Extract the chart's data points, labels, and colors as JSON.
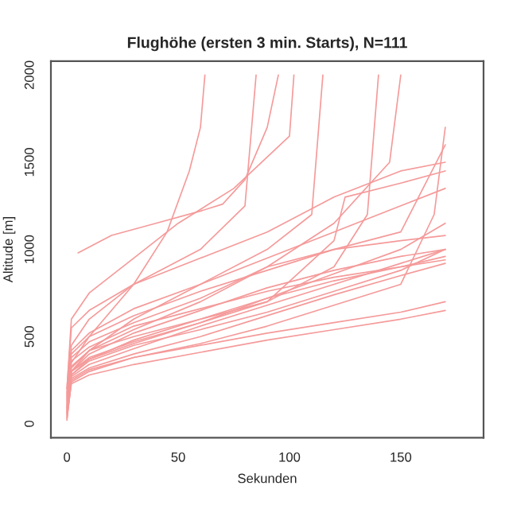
{
  "chart_data": {
    "type": "line",
    "title": "Flughöhe (ersten 3 min. Starts), N=111",
    "xlabel": "Sekunden",
    "ylabel": "Altitude [m]",
    "xlim": [
      -7.2,
      187.2
    ],
    "ylim": [
      -80,
      2080
    ],
    "xticks": [
      0,
      50,
      100,
      150
    ],
    "yticks": [
      0,
      500,
      1000,
      1500,
      2000
    ],
    "grid": false,
    "legend": false,
    "line_style": "solid",
    "marker": "none",
    "series": [
      {
        "color": "#f59a9a",
        "x": [
          0,
          2,
          10,
          30,
          60,
          90,
          120,
          150,
          170
        ],
        "values": [
          20,
          250,
          310,
          380,
          450,
          520,
          580,
          640,
          700
        ]
      },
      {
        "color": "#f59a9a",
        "x": [
          0,
          2,
          10,
          30,
          60,
          90,
          120,
          150,
          170
        ],
        "values": [
          100,
          300,
          400,
          520,
          650,
          780,
          880,
          960,
          1000
        ]
      },
      {
        "color": "#f59a9a",
        "x": [
          0,
          2,
          10,
          30,
          60,
          90,
          120,
          125,
          150,
          170
        ],
        "values": [
          50,
          280,
          370,
          480,
          600,
          700,
          1050,
          1300,
          1380,
          1450
        ]
      },
      {
        "color": "#f59a9a",
        "x": [
          0,
          2,
          10,
          30,
          60,
          90,
          120,
          150,
          170
        ],
        "values": [
          200,
          550,
          650,
          800,
          950,
          1100,
          1300,
          1450,
          1500
        ]
      },
      {
        "color": "#f59a9a",
        "x": [
          5,
          20,
          40,
          60,
          70,
          80,
          90,
          95
        ],
        "values": [
          980,
          1080,
          1150,
          1220,
          1260,
          1400,
          1700,
          2000
        ]
      },
      {
        "color": "#f59a9a",
        "x": [
          0,
          2,
          10,
          30,
          45,
          55,
          60,
          62
        ],
        "values": [
          150,
          350,
          500,
          800,
          1100,
          1450,
          1700,
          2000
        ]
      },
      {
        "color": "#f59a9a",
        "x": [
          0,
          2,
          10,
          30,
          60,
          90,
          110,
          115
        ],
        "values": [
          80,
          300,
          420,
          600,
          800,
          1000,
          1200,
          2000
        ]
      },
      {
        "color": "#f59a9a",
        "x": [
          0,
          2,
          10,
          30,
          60,
          90,
          120,
          145,
          150
        ],
        "values": [
          120,
          320,
          420,
          540,
          700,
          900,
          1150,
          1500,
          2000
        ]
      },
      {
        "color": "#f59a9a",
        "x": [
          0,
          2,
          10,
          30,
          60,
          90,
          120,
          150,
          170
        ],
        "values": [
          60,
          260,
          320,
          400,
          500,
          620,
          740,
          850,
          920
        ]
      },
      {
        "color": "#f59a9a",
        "x": [
          0,
          2,
          10,
          30,
          60,
          90,
          120,
          150,
          170
        ],
        "values": [
          90,
          330,
          420,
          500,
          600,
          720,
          820,
          900,
          960
        ]
      },
      {
        "color": "#f59a9a",
        "x": [
          0,
          2,
          10,
          30,
          60,
          90,
          120,
          150,
          170
        ],
        "values": [
          40,
          230,
          280,
          340,
          410,
          480,
          540,
          600,
          650
        ]
      },
      {
        "color": "#f59a9a",
        "x": [
          0,
          2,
          10,
          30,
          60,
          90,
          120,
          150,
          160,
          170
        ],
        "values": [
          160,
          400,
          500,
          620,
          760,
          880,
          1000,
          1100,
          1350,
          1600
        ]
      },
      {
        "color": "#f59a9a",
        "x": [
          0,
          2,
          10,
          30,
          60,
          80,
          85
        ],
        "values": [
          180,
          450,
          600,
          800,
          1000,
          1250,
          2000
        ]
      },
      {
        "color": "#f59a9a",
        "x": [
          0,
          2,
          10,
          30,
          60,
          90,
          120,
          135,
          140
        ],
        "values": [
          70,
          300,
          380,
          470,
          580,
          700,
          900,
          1200,
          2000
        ]
      },
      {
        "color": "#f59a9a",
        "x": [
          0,
          2,
          10,
          30,
          60,
          90,
          120,
          150,
          170
        ],
        "values": [
          130,
          380,
          470,
          580,
          720,
          900,
          1000,
          1050,
          1080
        ]
      },
      {
        "color": "#f59a9a",
        "x": [
          0,
          2,
          10,
          30,
          60,
          90,
          120,
          150,
          170
        ],
        "values": [
          110,
          270,
          340,
          430,
          560,
          680,
          800,
          920,
          1000
        ]
      },
      {
        "color": "#f59a9a",
        "x": [
          0,
          2,
          10,
          30,
          50,
          75,
          100,
          102
        ],
        "values": [
          200,
          600,
          750,
          950,
          1150,
          1350,
          1650,
          2000
        ]
      },
      {
        "color": "#f59a9a",
        "x": [
          0,
          2,
          10,
          30,
          60,
          90,
          120,
          150,
          165,
          170
        ],
        "values": [
          30,
          240,
          300,
          380,
          460,
          560,
          680,
          800,
          1200,
          1700
        ]
      },
      {
        "color": "#f59a9a",
        "x": [
          0,
          2,
          10,
          30,
          60,
          90,
          120,
          150,
          170
        ],
        "values": [
          170,
          420,
          520,
          660,
          800,
          950,
          1100,
          1250,
          1350
        ]
      },
      {
        "color": "#f59a9a",
        "x": [
          0,
          2,
          10,
          30,
          60,
          90,
          120,
          150,
          170
        ],
        "values": [
          60,
          280,
          360,
          450,
          540,
          640,
          760,
          880,
          1000
        ]
      },
      {
        "color": "#f59a9a",
        "x": [
          0,
          2,
          10,
          30,
          60,
          90,
          120,
          150,
          170
        ],
        "values": [
          140,
          360,
          440,
          560,
          660,
          760,
          840,
          900,
          940
        ]
      },
      {
        "color": "#f59a9a",
        "x": [
          0,
          2,
          10,
          30,
          60,
          90,
          120,
          150,
          170
        ],
        "values": [
          90,
          300,
          370,
          460,
          580,
          720,
          860,
          1000,
          1150
        ]
      }
    ]
  }
}
